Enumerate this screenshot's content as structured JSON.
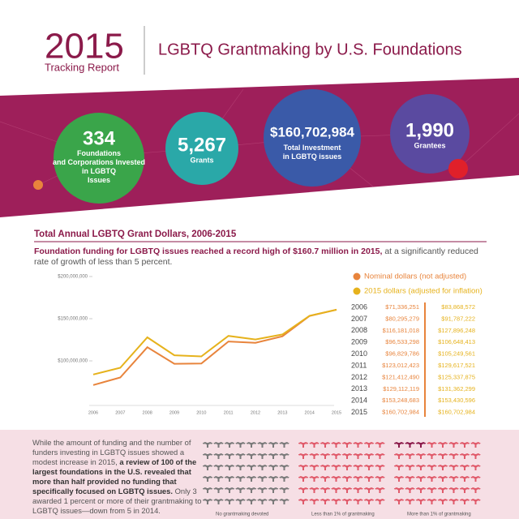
{
  "header": {
    "year": "2015",
    "subtitle": "Tracking Report",
    "title": "LGBTQ Grantmaking by U.S. Foundations"
  },
  "stats": [
    {
      "value": "334",
      "label": "Foundations and Corporations Invested in LGBTQ Issues"
    },
    {
      "value": "5,267",
      "label": "Grants"
    },
    {
      "value": "$160,702,984",
      "label": "Total Investment in LGBTQ issues"
    },
    {
      "value": "1,990",
      "label": "Grantees"
    }
  ],
  "chart_data": {
    "type": "line",
    "title": "Total Annual LGBTQ Grant Dollars, 2006-2015",
    "subtitle_bold": "Foundation funding for LGBTQ issues reached a record high of $160.7 million in 2015,",
    "subtitle": "at a significantly reduced rate of growth of less than 5 percent.",
    "categories": [
      "2006",
      "2007",
      "2008",
      "2009",
      "2010",
      "2011",
      "2012",
      "2013",
      "2014",
      "2015"
    ],
    "series": [
      {
        "name": "Nominal dollars (not adjusted)",
        "color": "#e8843c",
        "values": [
          71336251,
          80295279,
          116181018,
          96533298,
          96829786,
          123012423,
          121412490,
          129112119,
          153248683,
          160702984
        ],
        "value_labels": [
          "$71,336,251",
          "$80,295,279",
          "$116,181,018",
          "$96,533,298",
          "$96,829,786",
          "$123,012,423",
          "$121,412,490",
          "$129,112,119",
          "$153,248,683",
          "$160,702,984"
        ]
      },
      {
        "name": "2015 dollars (adjusted for inflation)",
        "color": "#e6b21c",
        "values": [
          83868572,
          91787222,
          127896248,
          106648413,
          105249561,
          129617521,
          125337875,
          131362299,
          153430596,
          160702984
        ],
        "value_labels": [
          "$83,868,572",
          "$91,787,222",
          "$127,896,248",
          "$106,648,413",
          "$105,249,561",
          "$129,617,521",
          "$125,337,875",
          "$131,362,299",
          "$153,430,596",
          "$160,702,984"
        ]
      }
    ],
    "ylim": [
      40000000,
      200000000
    ],
    "yticks": [
      {
        "value": 100000000,
        "label": "$100,000,000"
      },
      {
        "value": 150000000,
        "label": "$150,000,000"
      },
      {
        "value": 200000000,
        "label": "$200,000,000"
      }
    ]
  },
  "bottom": {
    "text_1": "While the amount of funding and the number of funders investing in LGBTQ issues showed a modest increase in 2015,",
    "text_bold": "a review of 100 of the largest foundations in the U.S. revealed that more than half provided no funding that specifically focused on LGBTQ issues.",
    "text_2": "Only 3 awarded 1 percent or more of their grantmaking to LGBTQ issues—down from 5 in 2014.",
    "legend": [
      "No grantmaking devoted",
      "Less than 1% of grantmaking",
      "More than 1% of grantmaking"
    ]
  }
}
